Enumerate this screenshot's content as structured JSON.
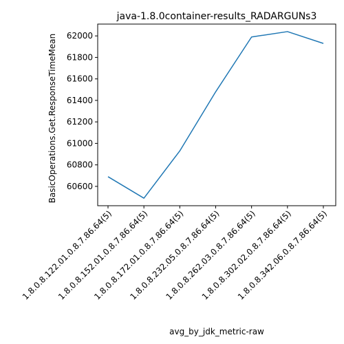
{
  "chart_data": {
    "type": "line",
    "title": "java-1.8.0container-results_RADARGUNs3",
    "xlabel": "avg_by_jdk_metric-raw",
    "ylabel": "BasicOperations.Get.ResponseTimeMean",
    "categories": [
      "1.8.0.8.122.01.0.8.7.86.64(5)",
      "1.8.0.8.152.01.0.8.7.86.64(5)",
      "1.8.0.8.172.01.0.8.7.86.64(5)",
      "1.8.0.8.232.05.0.8.7.86.64(5)",
      "1.8.0.8.262.03.0.8.7.86.64(5)",
      "1.8.0.8.302.02.0.8.7.86.64(5)",
      "1.8.0.8.342.06.0.8.7.86.64(5)"
    ],
    "series": [
      {
        "values": [
          60690,
          60490,
          60930,
          61480,
          61990,
          62040,
          61930
        ],
        "color": "#1f77b4"
      }
    ],
    "ylim": [
      60420,
      62110
    ],
    "yticks": [
      60600,
      60800,
      61000,
      61200,
      61400,
      61600,
      61800,
      62000
    ],
    "grid": false,
    "legend": "none"
  }
}
